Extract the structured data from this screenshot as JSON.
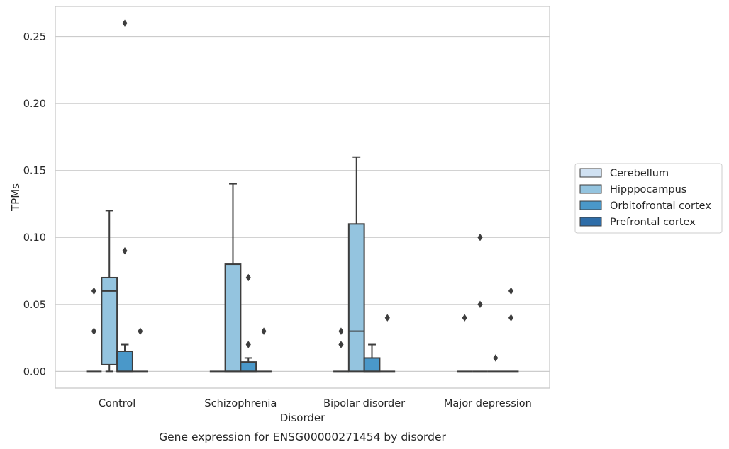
{
  "chart_data": {
    "type": "boxplot",
    "title": "Gene expression for ENSG00000271454 by disorder",
    "xlabel": "Disorder",
    "ylabel": "TPMs",
    "ylim": [
      -0.0125,
      0.2725
    ],
    "yticks": [
      0.0,
      0.05,
      0.1,
      0.15,
      0.2,
      0.25
    ],
    "ytick_labels": [
      "0.00",
      "0.05",
      "0.10",
      "0.15",
      "0.20",
      "0.25"
    ],
    "categories": [
      "Control",
      "Schizophrenia",
      "Bipolar disorder",
      "Major depression"
    ],
    "grid": true,
    "legend_position": "right",
    "series": [
      {
        "name": "Cerebellum",
        "color": "#d0e1f2",
        "boxes": [
          {
            "q1": 0,
            "median": 0,
            "q3": 0,
            "whisker_low": 0,
            "whisker_high": 0,
            "outliers": [
              0.03,
              0.06
            ]
          },
          {
            "q1": 0,
            "median": 0,
            "q3": 0,
            "whisker_low": 0,
            "whisker_high": 0,
            "outliers": []
          },
          {
            "q1": 0,
            "median": 0,
            "q3": 0,
            "whisker_low": 0,
            "whisker_high": 0,
            "outliers": [
              0.02,
              0.03
            ]
          },
          {
            "q1": 0,
            "median": 0,
            "q3": 0,
            "whisker_low": 0,
            "whisker_high": 0,
            "outliers": [
              0.04
            ]
          }
        ]
      },
      {
        "name": "Hipppocampus",
        "color": "#94c4df",
        "boxes": [
          {
            "q1": 0.005,
            "median": 0.06,
            "q3": 0.07,
            "whisker_low": 0,
            "whisker_high": 0.12,
            "outliers": []
          },
          {
            "q1": 0,
            "median": 0,
            "q3": 0.08,
            "whisker_low": 0,
            "whisker_high": 0.14,
            "outliers": []
          },
          {
            "q1": 0,
            "median": 0.03,
            "q3": 0.11,
            "whisker_low": 0,
            "whisker_high": 0.16,
            "outliers": []
          },
          {
            "q1": 0,
            "median": 0,
            "q3": 0,
            "whisker_low": 0,
            "whisker_high": 0,
            "outliers": [
              0.05,
              0.1
            ]
          }
        ]
      },
      {
        "name": "Orbitofrontal cortex",
        "color": "#4a98c9",
        "boxes": [
          {
            "q1": 0,
            "median": 0,
            "q3": 0.015,
            "whisker_low": 0,
            "whisker_high": 0.02,
            "outliers": [
              0.09,
              0.26
            ]
          },
          {
            "q1": 0,
            "median": 0,
            "q3": 0.007,
            "whisker_low": 0,
            "whisker_high": 0.01,
            "outliers": [
              0.02,
              0.07
            ]
          },
          {
            "q1": 0,
            "median": 0,
            "q3": 0.01,
            "whisker_low": 0,
            "whisker_high": 0.02,
            "outliers": []
          },
          {
            "q1": 0,
            "median": 0,
            "q3": 0,
            "whisker_low": 0,
            "whisker_high": 0,
            "outliers": [
              0.01
            ]
          }
        ]
      },
      {
        "name": "Prefrontal cortex",
        "color": "#2e6da8",
        "boxes": [
          {
            "q1": 0,
            "median": 0,
            "q3": 0,
            "whisker_low": 0,
            "whisker_high": 0,
            "outliers": [
              0.03
            ]
          },
          {
            "q1": 0,
            "median": 0,
            "q3": 0,
            "whisker_low": 0,
            "whisker_high": 0,
            "outliers": [
              0.03
            ]
          },
          {
            "q1": 0,
            "median": 0,
            "q3": 0,
            "whisker_low": 0,
            "whisker_high": 0,
            "outliers": [
              0.04
            ]
          },
          {
            "q1": 0,
            "median": 0,
            "q3": 0,
            "whisker_low": 0,
            "whisker_high": 0,
            "outliers": [
              0.04,
              0.06
            ]
          }
        ]
      }
    ]
  }
}
